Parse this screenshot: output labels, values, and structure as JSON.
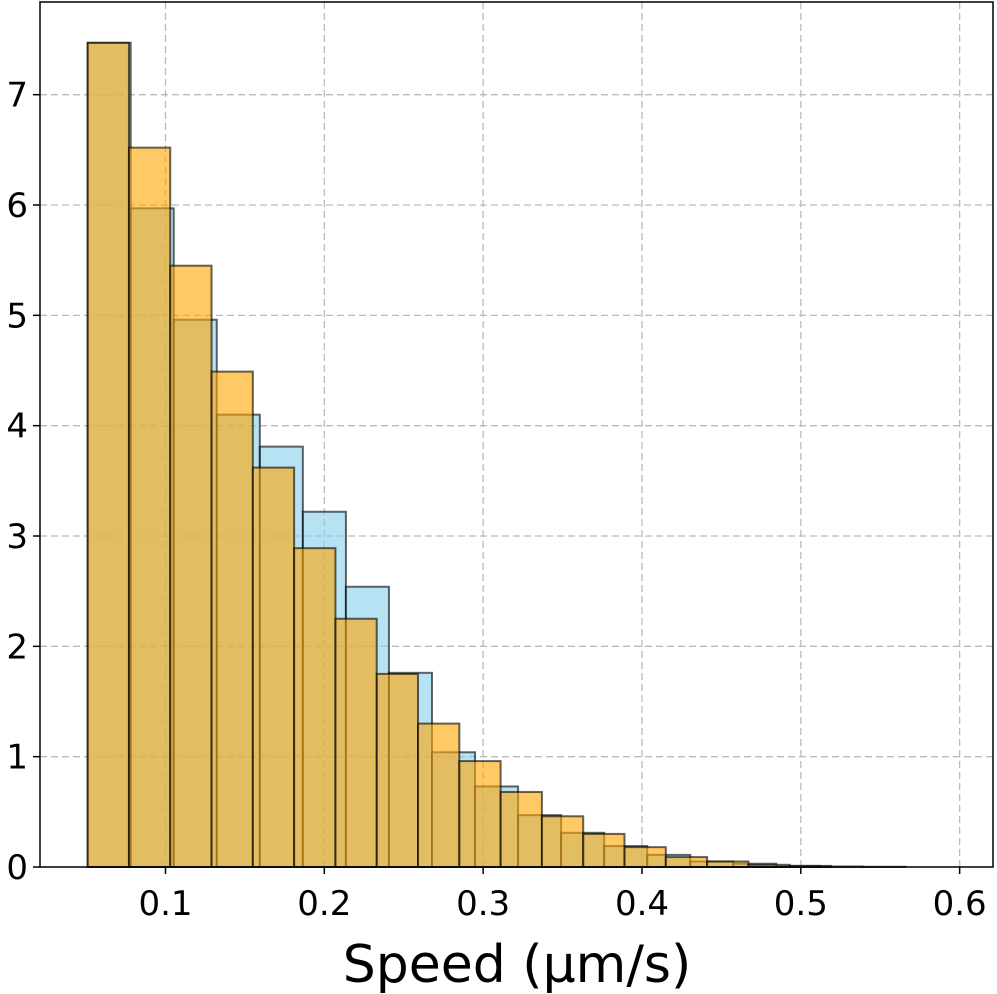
{
  "chart_data": {
    "type": "histogram",
    "xlabel": "Speed (μm/s)",
    "series": [
      {
        "color": "#87ceeb",
        "bins": [
          0.051,
          0.0781,
          0.1052,
          0.1323,
          0.1594,
          0.1865,
          0.2136,
          0.2407,
          0.2678,
          0.2949,
          0.322,
          0.3491,
          0.3762,
          0.4033,
          0.4304,
          0.4575,
          0.4846,
          0.5117,
          0.5388,
          0.5659
        ],
        "values": [
          7.47,
          5.97,
          4.96,
          4.1,
          3.81,
          3.22,
          2.54,
          1.76,
          1.04,
          0.73,
          0.47,
          0.31,
          0.19,
          0.11,
          0.05,
          0.03,
          0.01,
          0.005,
          0.002
        ]
      },
      {
        "color": "#ffa500",
        "bins": [
          0.051,
          0.077,
          0.103,
          0.129,
          0.155,
          0.181,
          0.207,
          0.233,
          0.259,
          0.285,
          0.311,
          0.337,
          0.363,
          0.389,
          0.415,
          0.441,
          0.467,
          0.493,
          0.519
        ],
        "values": [
          7.47,
          6.52,
          5.45,
          4.49,
          3.62,
          2.89,
          2.25,
          1.75,
          1.3,
          0.96,
          0.68,
          0.46,
          0.3,
          0.18,
          0.09,
          0.05,
          0.02,
          0.01
        ]
      }
    ],
    "xlim": [
      0.021,
      0.621
    ],
    "ylim": [
      0,
      7.84
    ],
    "xticks": [
      0.1,
      0.2,
      0.3,
      0.4,
      0.5,
      0.6
    ],
    "yticks": [
      0,
      1,
      2,
      3,
      4,
      5,
      6,
      7
    ],
    "grid": true
  }
}
